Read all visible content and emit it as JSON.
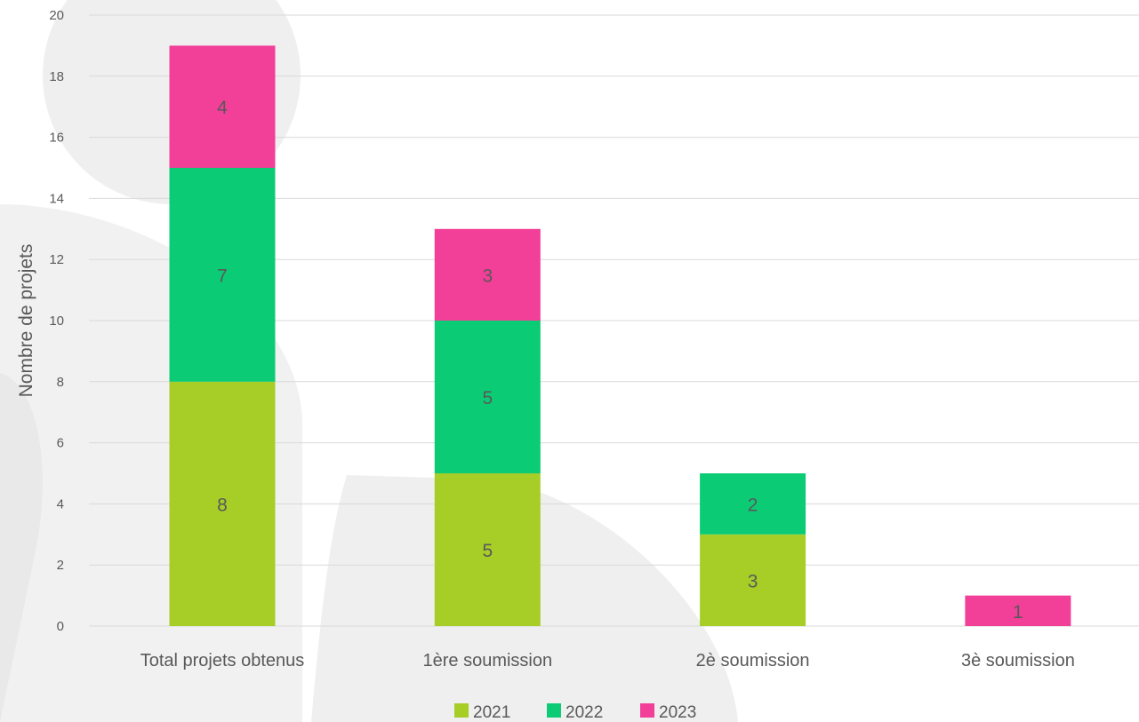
{
  "chart_data": {
    "type": "bar",
    "stacked": true,
    "categories": [
      "Total projets obtenus",
      "1ère soumission",
      "2è soumission",
      "3è soumission"
    ],
    "series": [
      {
        "name": "2021",
        "color": "#a6ce27",
        "values": [
          8,
          5,
          3,
          0
        ]
      },
      {
        "name": "2022",
        "color": "#0bcc74",
        "values": [
          7,
          5,
          2,
          0
        ]
      },
      {
        "name": "2023",
        "color": "#f23f98",
        "values": [
          4,
          3,
          0,
          1
        ]
      }
    ],
    "ylabel": "Nombre de projets",
    "xlabel": "",
    "title": "",
    "ylim": [
      0,
      20
    ],
    "yticks": [
      0,
      2,
      4,
      6,
      8,
      10,
      12,
      14,
      16,
      18,
      20
    ],
    "grid": true,
    "legend_position": "bottom",
    "data_labels": true
  }
}
